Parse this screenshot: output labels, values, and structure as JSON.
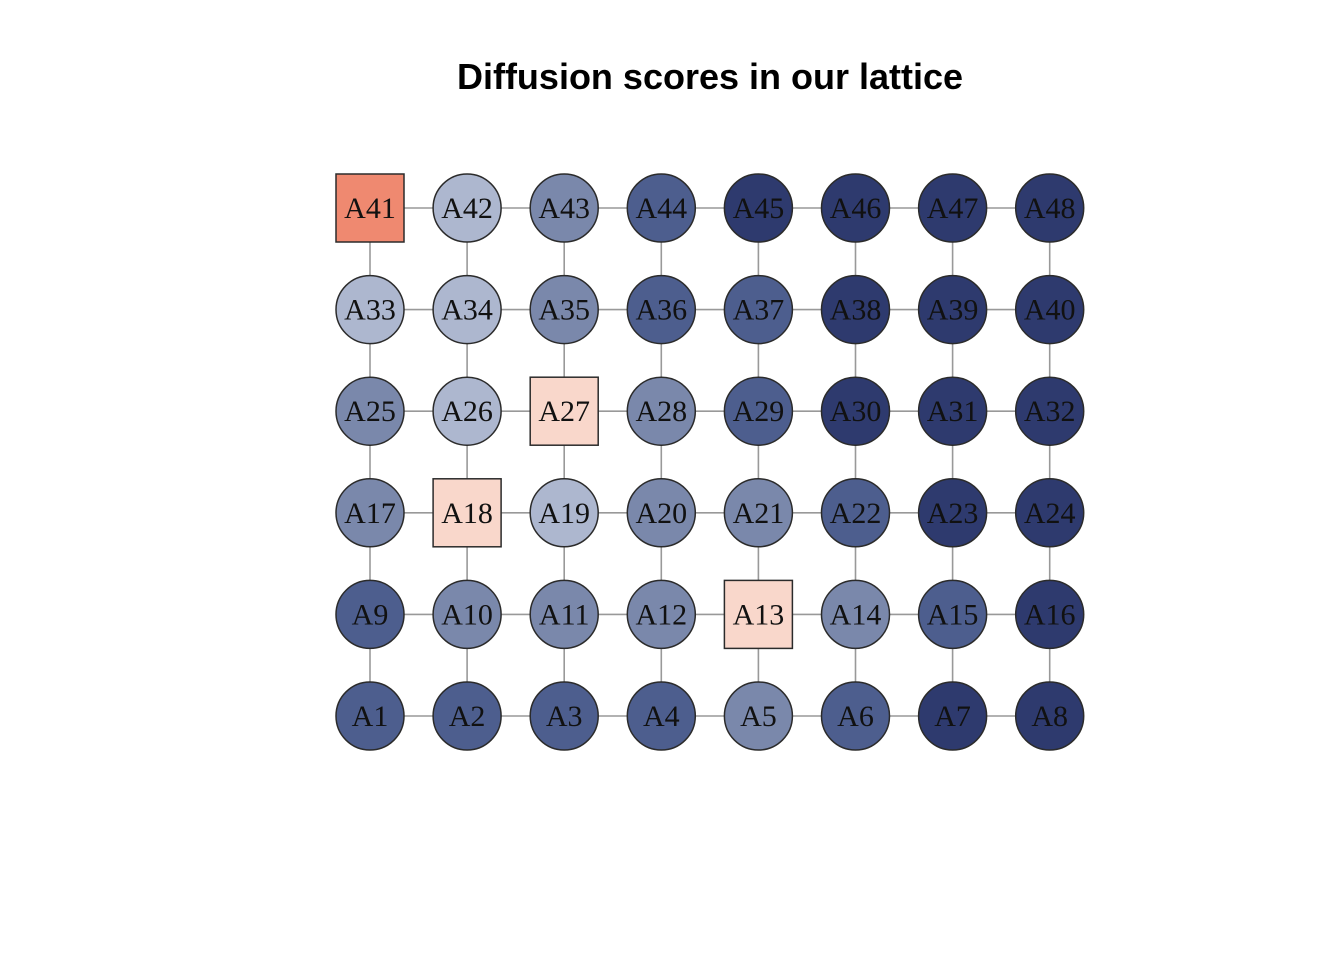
{
  "title": "Diffusion scores in our lattice",
  "colors": {
    "edge": "#999999",
    "node_stroke": "#2b2b2b",
    "label": "#111111",
    "scale": {
      "dark": "#2e3a6e",
      "mid_dark": "#4d5e8e",
      "mid": "#7a88ab",
      "light": "#adb7cf",
      "pale_pink": "#f9d7cb",
      "salmon": "#ef8970"
    }
  },
  "lattice": {
    "columns": 8,
    "rows": 6,
    "edges": "grid-4-neighbour"
  },
  "nodes": [
    {
      "id": "A1",
      "shape": "circle",
      "color": "mid_dark"
    },
    {
      "id": "A2",
      "shape": "circle",
      "color": "mid_dark"
    },
    {
      "id": "A3",
      "shape": "circle",
      "color": "mid_dark"
    },
    {
      "id": "A4",
      "shape": "circle",
      "color": "mid_dark"
    },
    {
      "id": "A5",
      "shape": "circle",
      "color": "mid"
    },
    {
      "id": "A6",
      "shape": "circle",
      "color": "mid_dark"
    },
    {
      "id": "A7",
      "shape": "circle",
      "color": "dark"
    },
    {
      "id": "A8",
      "shape": "circle",
      "color": "dark"
    },
    {
      "id": "A9",
      "shape": "circle",
      "color": "mid_dark"
    },
    {
      "id": "A10",
      "shape": "circle",
      "color": "mid"
    },
    {
      "id": "A11",
      "shape": "circle",
      "color": "mid"
    },
    {
      "id": "A12",
      "shape": "circle",
      "color": "mid"
    },
    {
      "id": "A13",
      "shape": "square",
      "color": "pale_pink"
    },
    {
      "id": "A14",
      "shape": "circle",
      "color": "mid"
    },
    {
      "id": "A15",
      "shape": "circle",
      "color": "mid_dark"
    },
    {
      "id": "A16",
      "shape": "circle",
      "color": "dark"
    },
    {
      "id": "A17",
      "shape": "circle",
      "color": "mid"
    },
    {
      "id": "A18",
      "shape": "square",
      "color": "pale_pink"
    },
    {
      "id": "A19",
      "shape": "circle",
      "color": "light"
    },
    {
      "id": "A20",
      "shape": "circle",
      "color": "mid"
    },
    {
      "id": "A21",
      "shape": "circle",
      "color": "mid"
    },
    {
      "id": "A22",
      "shape": "circle",
      "color": "mid_dark"
    },
    {
      "id": "A23",
      "shape": "circle",
      "color": "dark"
    },
    {
      "id": "A24",
      "shape": "circle",
      "color": "dark"
    },
    {
      "id": "A25",
      "shape": "circle",
      "color": "mid"
    },
    {
      "id": "A26",
      "shape": "circle",
      "color": "light"
    },
    {
      "id": "A27",
      "shape": "square",
      "color": "pale_pink"
    },
    {
      "id": "A28",
      "shape": "circle",
      "color": "mid"
    },
    {
      "id": "A29",
      "shape": "circle",
      "color": "mid_dark"
    },
    {
      "id": "A30",
      "shape": "circle",
      "color": "dark"
    },
    {
      "id": "A31",
      "shape": "circle",
      "color": "dark"
    },
    {
      "id": "A32",
      "shape": "circle",
      "color": "dark"
    },
    {
      "id": "A33",
      "shape": "circle",
      "color": "light"
    },
    {
      "id": "A34",
      "shape": "circle",
      "color": "light"
    },
    {
      "id": "A35",
      "shape": "circle",
      "color": "mid"
    },
    {
      "id": "A36",
      "shape": "circle",
      "color": "mid_dark"
    },
    {
      "id": "A37",
      "shape": "circle",
      "color": "mid_dark"
    },
    {
      "id": "A38",
      "shape": "circle",
      "color": "dark"
    },
    {
      "id": "A39",
      "shape": "circle",
      "color": "dark"
    },
    {
      "id": "A40",
      "shape": "circle",
      "color": "dark"
    },
    {
      "id": "A41",
      "shape": "square",
      "color": "salmon"
    },
    {
      "id": "A42",
      "shape": "circle",
      "color": "light"
    },
    {
      "id": "A43",
      "shape": "circle",
      "color": "mid"
    },
    {
      "id": "A44",
      "shape": "circle",
      "color": "mid_dark"
    },
    {
      "id": "A45",
      "shape": "circle",
      "color": "dark"
    },
    {
      "id": "A46",
      "shape": "circle",
      "color": "dark"
    },
    {
      "id": "A47",
      "shape": "circle",
      "color": "dark"
    },
    {
      "id": "A48",
      "shape": "circle",
      "color": "dark"
    }
  ]
}
